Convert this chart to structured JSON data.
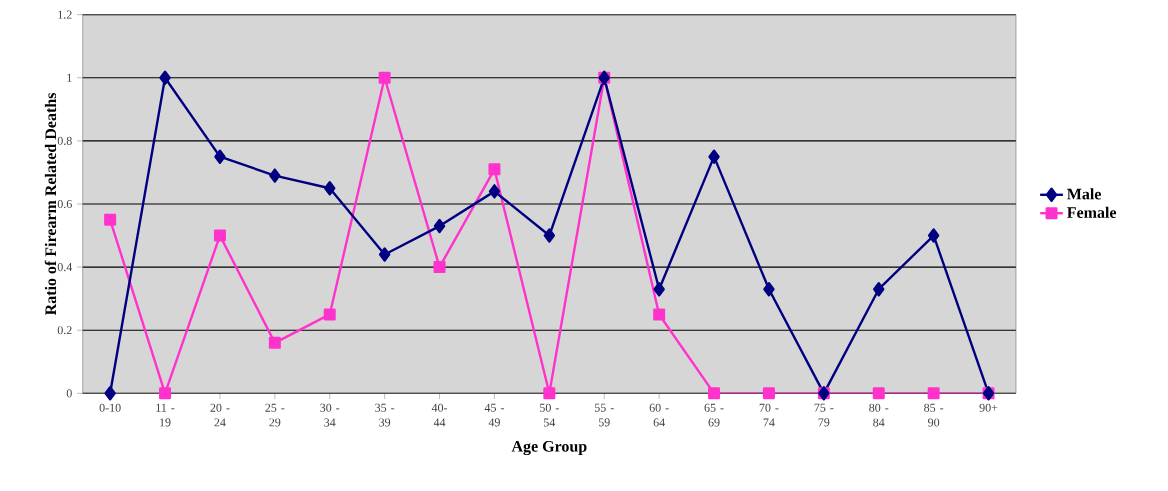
{
  "chart_data": {
    "type": "line",
    "xlabel": "Age Group",
    "ylabel": "Ratio of Firearm Related Deaths",
    "categories": [
      "0-10",
      "11 - 19",
      "20 - 24",
      "25 - 29",
      "30 - 34",
      "35 - 39",
      "40- 44",
      "45 - 49",
      "50 - 54",
      "55 - 59",
      "60 - 64",
      "65 - 69",
      "70 - 74",
      "75 - 79",
      "80 - 84",
      "85 - 90",
      "90+"
    ],
    "series": [
      {
        "name": "Male",
        "color": "#000080",
        "marker": "diamond",
        "values": [
          0,
          1,
          0.75,
          0.69,
          0.65,
          0.44,
          0.53,
          0.64,
          0.5,
          1,
          0.33,
          0.75,
          0.33,
          0,
          0.33,
          0.5,
          0
        ]
      },
      {
        "name": "Female",
        "color": "#ff33cc",
        "marker": "square",
        "values": [
          0.55,
          0,
          0.5,
          0.16,
          0.25,
          1,
          0.4,
          0.71,
          0,
          1,
          0.25,
          0,
          0,
          0,
          0,
          0,
          0
        ]
      }
    ],
    "ylim": [
      0,
      1.2
    ],
    "yticks": [
      0,
      0.2,
      0.4,
      0.6,
      0.8,
      1,
      1.2
    ],
    "grid": "y",
    "legend": "right",
    "line_style": "solid"
  }
}
